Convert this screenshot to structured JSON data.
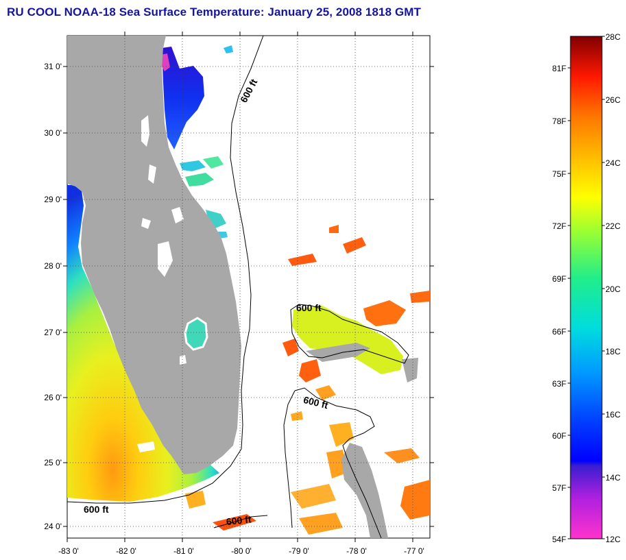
{
  "title": "RU COOL  NOAA-18  Sea Surface Temperature:  January 25, 2008 1818 GMT",
  "map": {
    "lon_labels": [
      "-83 0'",
      "-82 0'",
      "-81 0'",
      "-80 0'",
      "-79 0'",
      "-78 0'",
      "-77 0'"
    ],
    "lat_labels": [
      "31 0'",
      "30 0'",
      "29 0'",
      "28 0'",
      "27 0'",
      "26 0'",
      "25 0'",
      "24 0'"
    ],
    "contour_labels": [
      "600 ft",
      "600 ft",
      "600 ft",
      "600 ft",
      "600 ft"
    ]
  },
  "colorbar": {
    "fahrenheit_labels": [
      "81F",
      "78F",
      "75F",
      "72F",
      "69F",
      "66F",
      "63F",
      "60F",
      "57F",
      "54F"
    ],
    "celsius_labels": [
      "28C",
      "26C",
      "24C",
      "22C",
      "20C",
      "18C",
      "16C",
      "14C",
      "12C"
    ]
  },
  "colors": {
    "title": "#1414a0",
    "land": "#a8a8a8",
    "ocean": "#ffffff"
  }
}
